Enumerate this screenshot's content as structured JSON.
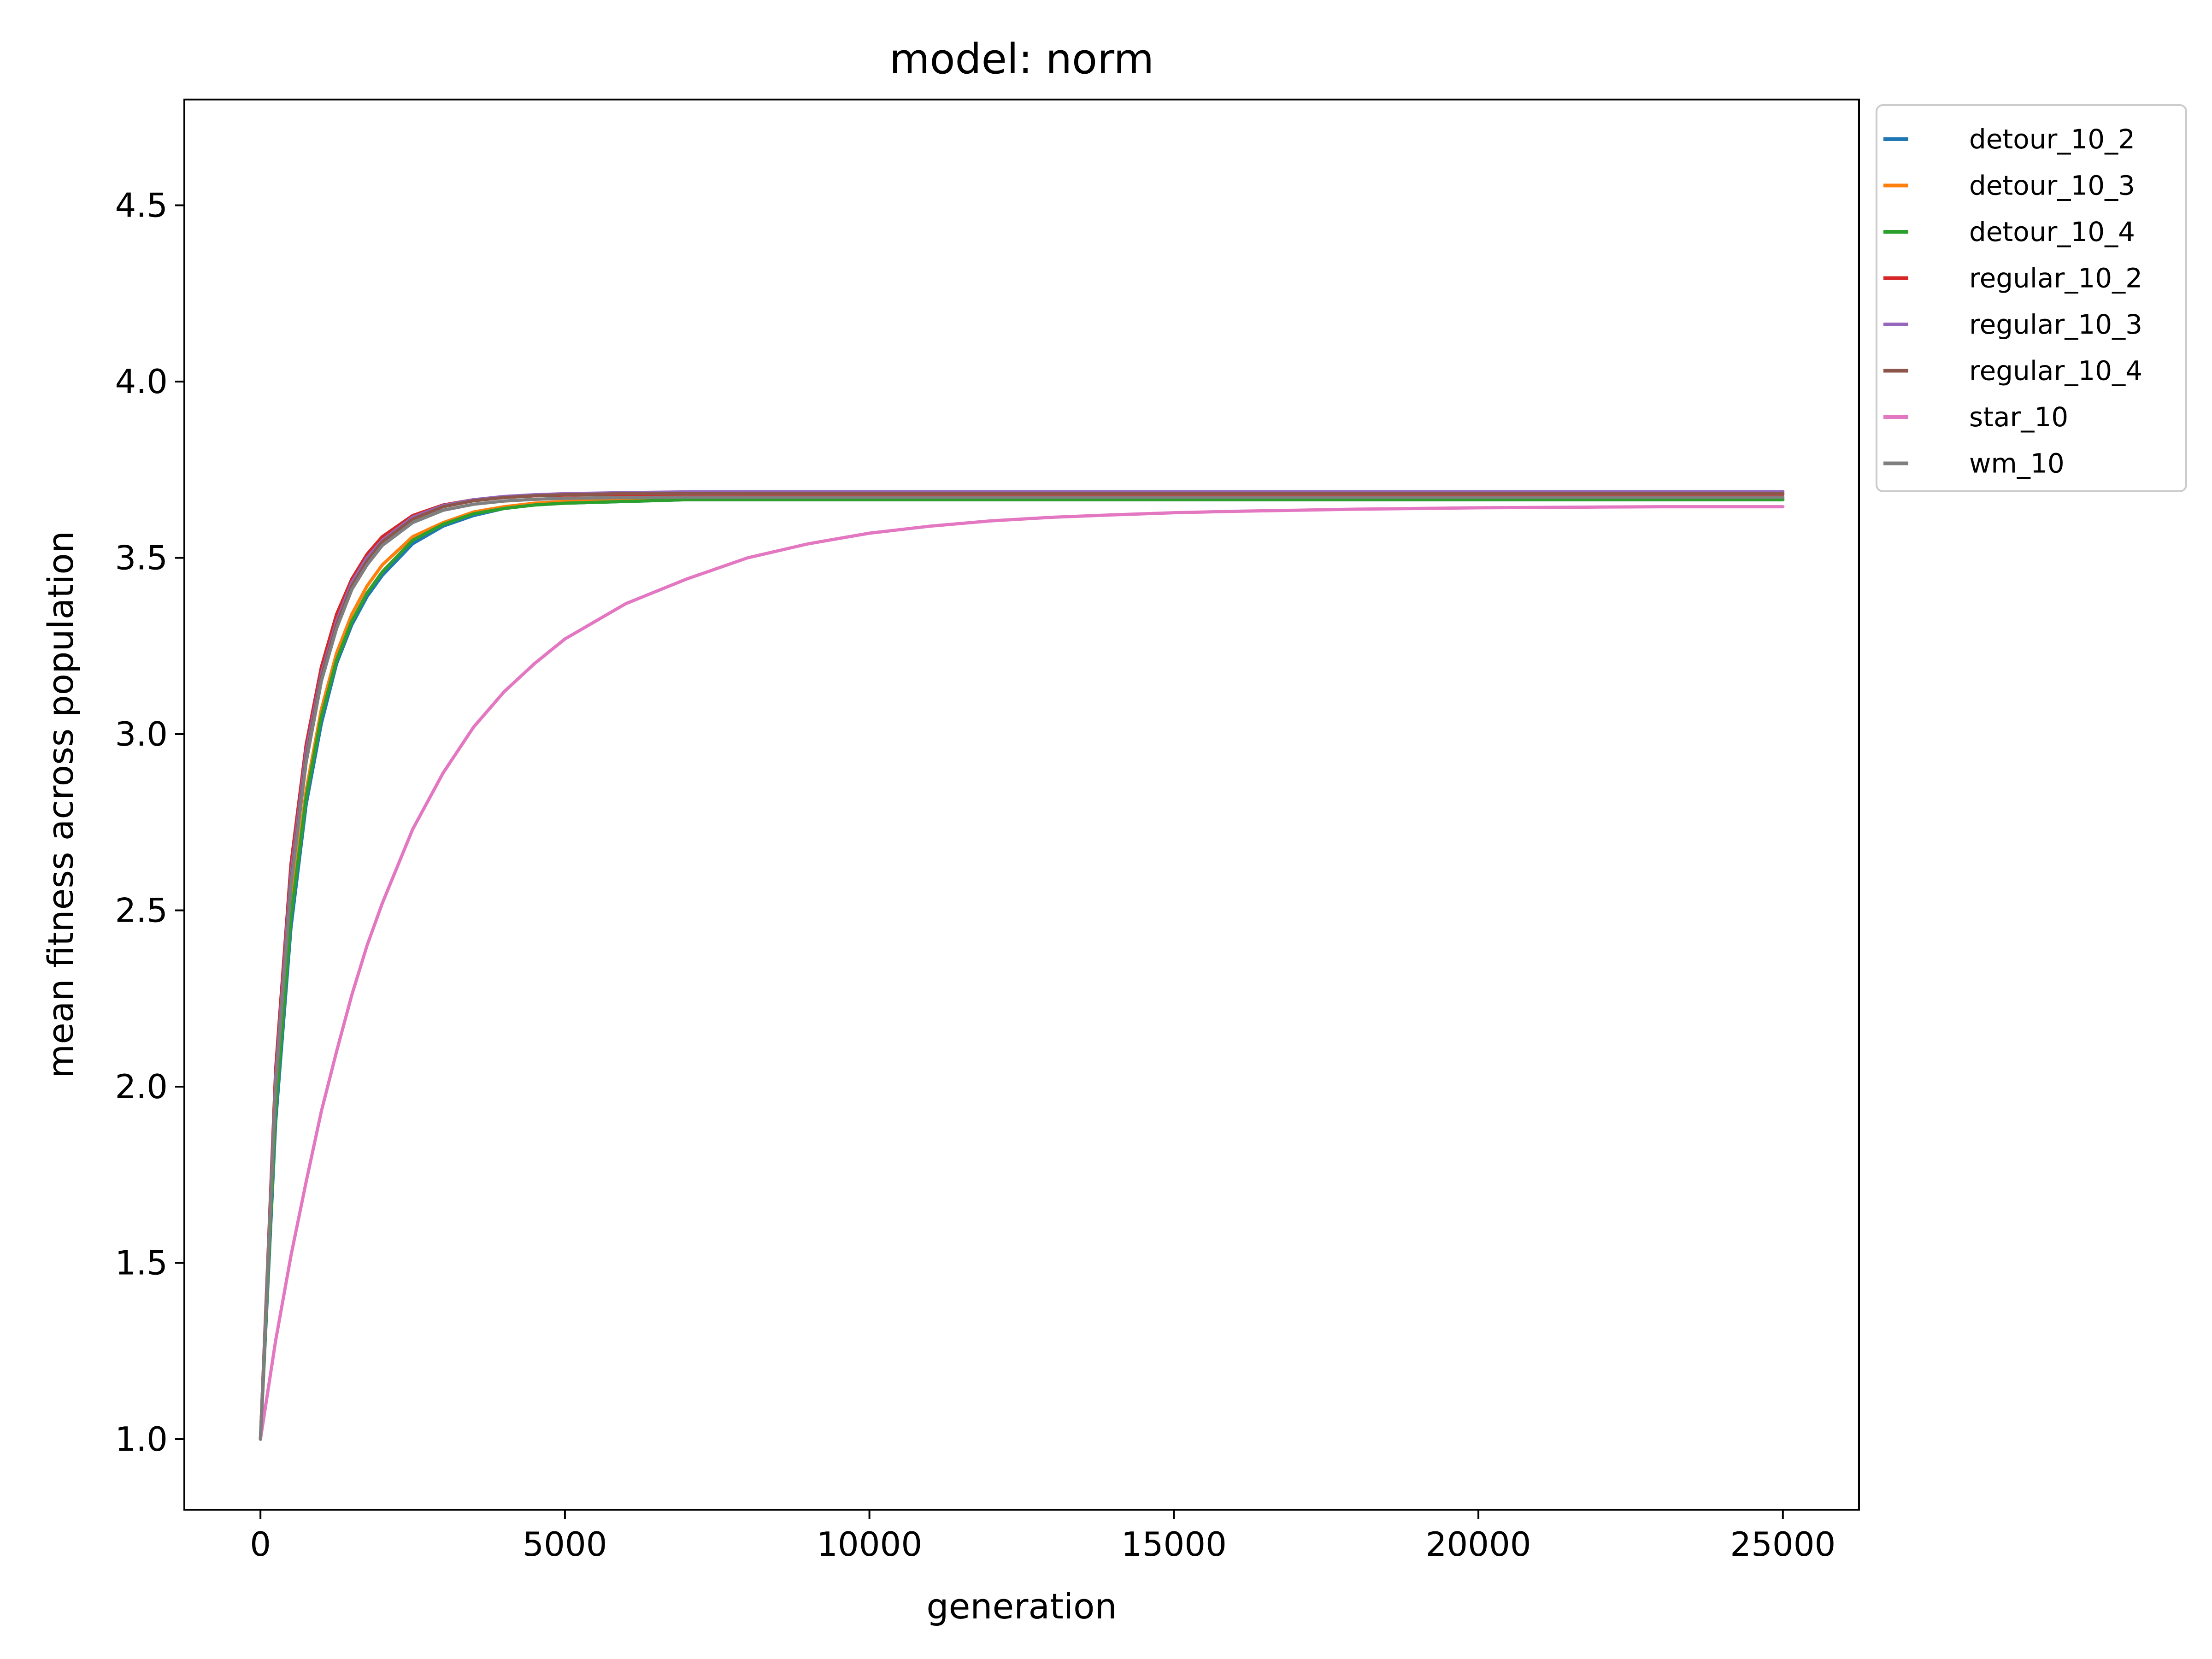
{
  "chart_data": {
    "type": "line",
    "title": "model: norm",
    "xlabel": "generation",
    "ylabel": "mean fitness across population",
    "xlim": [
      -1250,
      26250
    ],
    "ylim": [
      0.8,
      4.8
    ],
    "xticks": [
      0,
      5000,
      10000,
      15000,
      20000,
      25000
    ],
    "xtick_labels": [
      "0",
      "5000",
      "10000",
      "15000",
      "20000",
      "25000"
    ],
    "yticks": [
      1.0,
      1.5,
      2.0,
      2.5,
      3.0,
      3.5,
      4.0,
      4.5
    ],
    "ytick_labels": [
      "1.0",
      "1.5",
      "2.0",
      "2.5",
      "3.0",
      "3.5",
      "4.0",
      "4.5"
    ],
    "grid": false,
    "legend_position": "outside-upper-right",
    "x": [
      0,
      250,
      500,
      750,
      1000,
      1250,
      1500,
      1750,
      2000,
      2500,
      3000,
      3500,
      4000,
      4500,
      5000,
      6000,
      7000,
      8000,
      9000,
      10000,
      11000,
      12000,
      13000,
      14000,
      15000,
      16000,
      17000,
      18000,
      19000,
      20000,
      21000,
      22000,
      23000,
      24000,
      25000
    ],
    "series": [
      {
        "name": "detour_10_2",
        "color": "#1f77b4",
        "values": [
          1.0,
          1.9,
          2.45,
          2.8,
          3.03,
          3.2,
          3.31,
          3.39,
          3.45,
          3.54,
          3.59,
          3.62,
          3.64,
          3.65,
          3.655,
          3.66,
          3.665,
          3.665,
          3.665,
          3.665,
          3.665,
          3.665,
          3.665,
          3.665,
          3.665,
          3.665,
          3.665,
          3.665,
          3.665,
          3.665,
          3.665,
          3.665,
          3.665,
          3.665,
          3.665
        ]
      },
      {
        "name": "detour_10_3",
        "color": "#ff7f0e",
        "values": [
          1.0,
          1.95,
          2.5,
          2.84,
          3.07,
          3.23,
          3.34,
          3.42,
          3.48,
          3.56,
          3.6,
          3.63,
          3.645,
          3.655,
          3.66,
          3.665,
          3.67,
          3.67,
          3.67,
          3.67,
          3.67,
          3.67,
          3.67,
          3.67,
          3.67,
          3.67,
          3.67,
          3.67,
          3.67,
          3.67,
          3.67,
          3.67,
          3.67,
          3.67,
          3.67
        ]
      },
      {
        "name": "detour_10_4",
        "color": "#2ca02c",
        "values": [
          1.0,
          1.93,
          2.48,
          2.82,
          3.05,
          3.21,
          3.32,
          3.4,
          3.46,
          3.55,
          3.595,
          3.625,
          3.64,
          3.65,
          3.655,
          3.66,
          3.665,
          3.665,
          3.665,
          3.665,
          3.665,
          3.665,
          3.665,
          3.665,
          3.665,
          3.665,
          3.665,
          3.665,
          3.665,
          3.665,
          3.665,
          3.665,
          3.665,
          3.665,
          3.665
        ]
      },
      {
        "name": "regular_10_2",
        "color": "#d62728",
        "values": [
          1.0,
          2.05,
          2.63,
          2.97,
          3.19,
          3.34,
          3.44,
          3.51,
          3.56,
          3.62,
          3.65,
          3.665,
          3.672,
          3.676,
          3.678,
          3.68,
          3.68,
          3.68,
          3.68,
          3.68,
          3.68,
          3.68,
          3.68,
          3.68,
          3.68,
          3.68,
          3.68,
          3.68,
          3.68,
          3.68,
          3.68,
          3.68,
          3.68,
          3.68,
          3.68
        ]
      },
      {
        "name": "regular_10_3",
        "color": "#9467bd",
        "values": [
          1.0,
          2.02,
          2.6,
          2.95,
          3.17,
          3.32,
          3.43,
          3.5,
          3.55,
          3.615,
          3.648,
          3.665,
          3.674,
          3.679,
          3.682,
          3.685,
          3.687,
          3.688,
          3.688,
          3.688,
          3.688,
          3.688,
          3.688,
          3.688,
          3.688,
          3.688,
          3.688,
          3.688,
          3.688,
          3.688,
          3.688,
          3.688,
          3.688,
          3.688,
          3.688
        ]
      },
      {
        "name": "regular_10_4",
        "color": "#8c564b",
        "values": [
          1.0,
          2.0,
          2.58,
          2.93,
          3.16,
          3.31,
          3.42,
          3.49,
          3.545,
          3.61,
          3.645,
          3.662,
          3.671,
          3.676,
          3.679,
          3.682,
          3.683,
          3.683,
          3.683,
          3.683,
          3.683,
          3.683,
          3.683,
          3.683,
          3.683,
          3.683,
          3.683,
          3.683,
          3.683,
          3.683,
          3.683,
          3.683,
          3.683,
          3.683,
          3.683
        ]
      },
      {
        "name": "star_10",
        "color": "#e377c2",
        "values": [
          1.0,
          1.28,
          1.52,
          1.73,
          1.93,
          2.1,
          2.26,
          2.4,
          2.52,
          2.73,
          2.89,
          3.02,
          3.12,
          3.2,
          3.27,
          3.37,
          3.44,
          3.5,
          3.54,
          3.57,
          3.59,
          3.605,
          3.615,
          3.622,
          3.628,
          3.632,
          3.635,
          3.638,
          3.64,
          3.642,
          3.643,
          3.644,
          3.645,
          3.645,
          3.645
        ]
      },
      {
        "name": "wm_10",
        "color": "#7f7f7f",
        "values": [
          1.0,
          2.0,
          2.57,
          2.92,
          3.15,
          3.3,
          3.41,
          3.48,
          3.535,
          3.6,
          3.635,
          3.652,
          3.661,
          3.666,
          3.669,
          3.671,
          3.672,
          3.672,
          3.672,
          3.672,
          3.672,
          3.672,
          3.672,
          3.672,
          3.672,
          3.672,
          3.672,
          3.672,
          3.672,
          3.672,
          3.672,
          3.672,
          3.672,
          3.672,
          3.672
        ]
      }
    ]
  }
}
